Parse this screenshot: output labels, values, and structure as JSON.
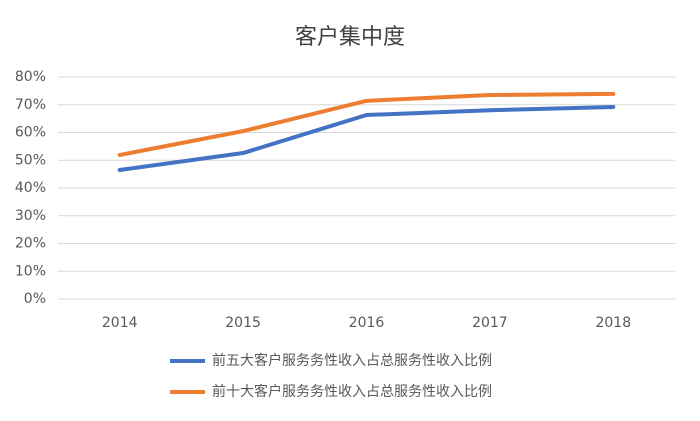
{
  "chart_data": {
    "type": "line",
    "title": "客户集中度",
    "categories": [
      "2014",
      "2015",
      "2016",
      "2017",
      "2018"
    ],
    "series": [
      {
        "name": "前五大客户服务务性收入占总服务性收入比例",
        "color": "#4472c4",
        "values": [
          46.5,
          52.6,
          66.3,
          68,
          69.2
        ]
      },
      {
        "name": "前十大客户服务务性收入占总服务性收入比例",
        "color": "#ed7d31",
        "values": [
          51.9,
          60.5,
          71.4,
          73.5,
          73.9
        ]
      }
    ],
    "ylim": [
      0,
      80
    ],
    "yticks": [
      {
        "value": 0,
        "label": "0%"
      },
      {
        "value": 10,
        "label": "10%"
      },
      {
        "value": 20,
        "label": "20%"
      },
      {
        "value": 30,
        "label": "30%"
      },
      {
        "value": 40,
        "label": "40%"
      },
      {
        "value": 50,
        "label": "50%"
      },
      {
        "value": 60,
        "label": "60%"
      },
      {
        "value": 70,
        "label": "70%"
      },
      {
        "value": 80,
        "label": "80%"
      }
    ],
    "grid": true,
    "legend": "bottom"
  }
}
